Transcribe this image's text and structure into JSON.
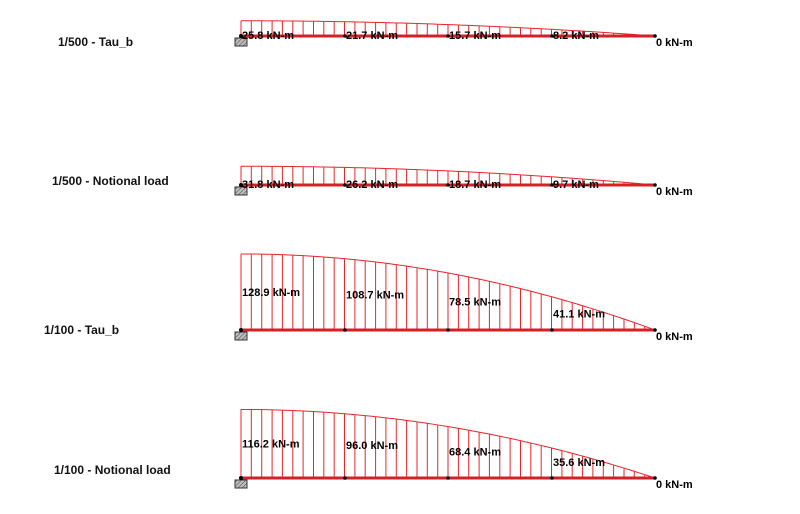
{
  "colors": {
    "diagram": "#e8262b",
    "beam": "#d42027",
    "support_fill": "#8a8a8a",
    "text": "#111111"
  },
  "cases": [
    {
      "label": "1/500 - Tau_b",
      "max_moment": 25.8,
      "values": [
        "25.8 kN-m",
        "21.7 kN-m",
        "15.7 kN-m",
        "8.2 kN-m",
        "0 kN-m"
      ]
    },
    {
      "label": "1/500 - Notional load",
      "max_moment": 31.8,
      "values": [
        "31.8 kN-m",
        "26.2 kN-m",
        "18.7 kN-m",
        "9.7 kN-m",
        "0 kN-m"
      ]
    },
    {
      "label": "1/100 - Tau_b",
      "max_moment": 128.9,
      "values": [
        "128.9 kN-m",
        "108.7 kN-m",
        "78.5 kN-m",
        "41.1 kN-m",
        "0 kN-m"
      ]
    },
    {
      "label": "1/100 - Notional load",
      "max_moment": 116.2,
      "values": [
        "116.2 kN-m",
        "96.0 kN-m",
        "68.4 kN-m",
        "35.6 kN-m",
        "0 kN-m"
      ]
    }
  ]
}
